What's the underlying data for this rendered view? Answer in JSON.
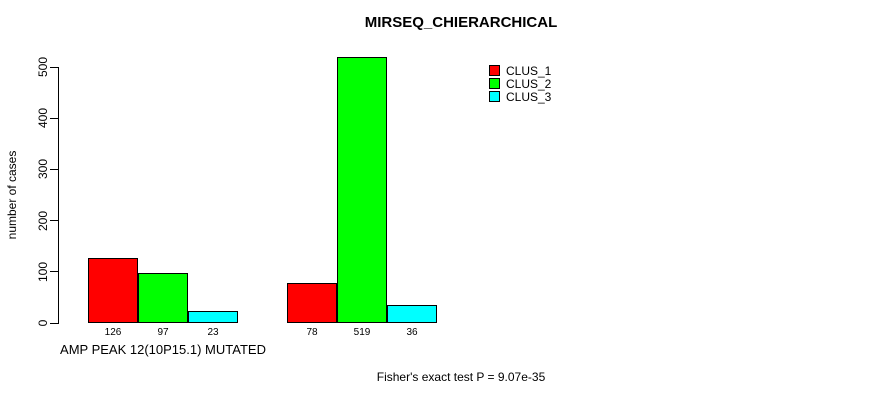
{
  "chart_data": {
    "type": "bar",
    "title": "MIRSEQ_CHIERARCHICAL",
    "ylabel": "number of cases",
    "ylim": [
      0,
      500
    ],
    "yticks": [
      0,
      100,
      200,
      300,
      400,
      500
    ],
    "grid": false,
    "legend_position": "top-right",
    "series": [
      {
        "name": "CLUS_1",
        "color": "#ff0000"
      },
      {
        "name": "CLUS_2",
        "color": "#00ff00"
      },
      {
        "name": "CLUS_3",
        "color": "#00ffff"
      }
    ],
    "groups": [
      {
        "label": "AMP PEAK 12(10P15.1) MUTATED",
        "values": [
          126,
          97,
          23
        ]
      },
      {
        "label": "",
        "values": [
          78,
          519,
          36
        ]
      }
    ],
    "annotation": "Fisher's exact test P = 9.07e-35"
  }
}
